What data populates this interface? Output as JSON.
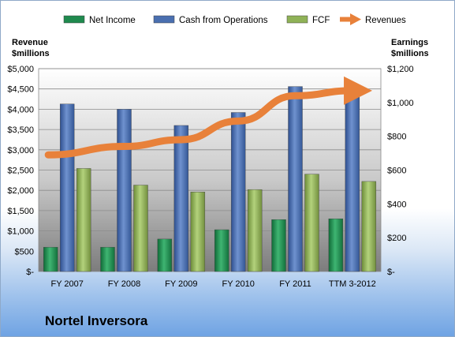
{
  "chart_data": {
    "type": "bar",
    "categories": [
      "FY 2007",
      "FY 2008",
      "FY 2009",
      "FY 2010",
      "FY 2011",
      "TTM 3-2012"
    ],
    "series": [
      {
        "name": "Net Income",
        "axis": "left",
        "values": [
          600,
          600,
          800,
          1030,
          1280,
          1300
        ],
        "color": "#1f8a4e"
      },
      {
        "name": "Cash from Operations",
        "axis": "left",
        "values": [
          4130,
          4000,
          3600,
          3920,
          4560,
          4580
        ],
        "color": "#4a6fb0"
      },
      {
        "name": "FCF",
        "axis": "left",
        "values": [
          2540,
          2130,
          1960,
          2020,
          2400,
          2220
        ],
        "color": "#8fb257"
      }
    ],
    "line_series": {
      "name": "Revenues",
      "axis": "right",
      "type": "line",
      "values": [
        690,
        740,
        780,
        890,
        1040,
        1070
      ],
      "color": "#e8813a"
    },
    "left_axis": {
      "title_line1": "Revenue",
      "title_line2": "$millions",
      "range": [
        0,
        5000
      ],
      "ticks": [
        0,
        500,
        1000,
        1500,
        2000,
        2500,
        3000,
        3500,
        4000,
        4500,
        5000
      ],
      "tick_labels": [
        "$-",
        "$500",
        "$1,000",
        "$1,500",
        "$2,000",
        "$2,500",
        "$3,000",
        "$3,500",
        "$4,000",
        "$4,500",
        "$5,000"
      ]
    },
    "right_axis": {
      "title_line1": "Earnings",
      "title_line2": "$millions",
      "range": [
        0,
        1200
      ],
      "ticks": [
        0,
        200,
        400,
        600,
        800,
        1000,
        1200
      ],
      "tick_labels": [
        "$-",
        "$200",
        "$400",
        "$600",
        "$800",
        "$1,000",
        "$1,200"
      ]
    },
    "legend": {
      "placement": "top",
      "entries": [
        "Net Income",
        "Cash from Operations",
        "FCF",
        "Revenues"
      ]
    },
    "grid": true
  },
  "company": "Nortel Inversora"
}
